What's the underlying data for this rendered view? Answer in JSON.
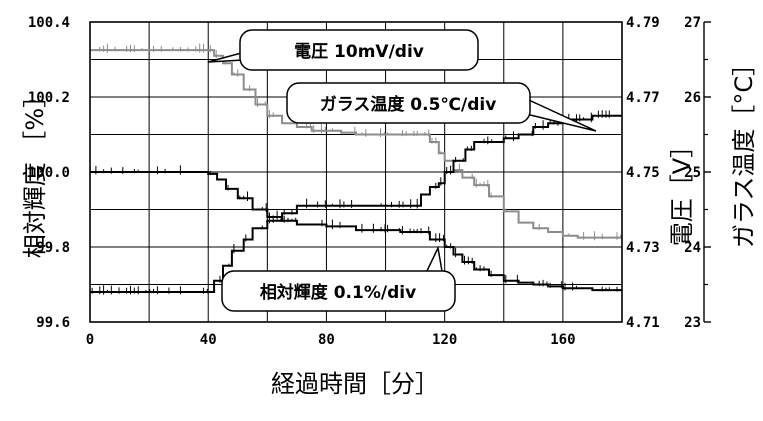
{
  "chart_data": {
    "type": "line",
    "xlabel": "経過時間［分］",
    "xlim": [
      0,
      180
    ],
    "x_ticks": [
      "0",
      "40",
      "80",
      "120",
      "160"
    ],
    "grid": true,
    "axes": {
      "luminance": {
        "label": "相対輝度 ［%］",
        "ylim": [
          99.6,
          100.4
        ],
        "ticks": [
          "99.6",
          "99.8",
          "100.0",
          "100.2",
          "100.4"
        ]
      },
      "voltage": {
        "label": "電圧［V］",
        "ylim": [
          4.71,
          4.79
        ],
        "ticks": [
          "4.71",
          "4.73",
          "4.75",
          "4.77",
          "4.79"
        ]
      },
      "temperature": {
        "label": "ガラス温度［°C］",
        "ylim": [
          23,
          27
        ],
        "ticks": [
          "23",
          "24",
          "25",
          "26",
          "27"
        ]
      }
    },
    "series": [
      {
        "name": "電圧 10mV/div",
        "axis": "voltage",
        "color": "#8c8c8c",
        "x": [
          0,
          40,
          42,
          45,
          48,
          52,
          56,
          60,
          65,
          70,
          75,
          80,
          85,
          90,
          95,
          100,
          105,
          110,
          115,
          118,
          120,
          123,
          126,
          130,
          135,
          140,
          145,
          150,
          155,
          160,
          165,
          170,
          175,
          180
        ],
        "y": [
          4.7825,
          4.7825,
          4.781,
          4.779,
          4.776,
          4.772,
          4.768,
          4.765,
          4.763,
          4.762,
          4.761,
          4.761,
          4.7605,
          4.76,
          4.76,
          4.76,
          4.76,
          4.76,
          4.758,
          4.755,
          4.753,
          4.7505,
          4.7485,
          4.7465,
          4.7435,
          4.7395,
          4.7365,
          4.735,
          4.734,
          4.733,
          4.7325,
          4.7325,
          4.7325,
          4.7325
        ]
      },
      {
        "name": "ガラス温度 0.5℃/div",
        "axis": "temperature",
        "color": "#000000",
        "x": [
          0,
          40,
          42,
          45,
          48,
          52,
          55,
          60,
          65,
          70,
          75,
          80,
          90,
          100,
          110,
          112,
          115,
          118,
          120,
          123,
          127,
          130,
          140,
          145,
          150,
          155,
          160,
          165,
          170,
          175,
          180
        ],
        "y": [
          23.4,
          23.4,
          23.55,
          23.75,
          23.95,
          24.1,
          24.25,
          24.35,
          24.45,
          24.55,
          24.55,
          24.55,
          24.55,
          24.55,
          24.55,
          24.7,
          24.8,
          24.85,
          25.0,
          25.15,
          25.3,
          25.4,
          25.45,
          25.5,
          25.6,
          25.65,
          25.7,
          25.7,
          25.75,
          25.75,
          25.75
        ]
      },
      {
        "name": "相対輝度 0.1%/div",
        "axis": "luminance",
        "color": "#000000",
        "x": [
          0,
          40,
          43,
          46,
          50,
          55,
          60,
          65,
          70,
          80,
          90,
          100,
          105,
          110,
          115,
          120,
          123,
          126,
          130,
          135,
          140,
          145,
          150,
          155,
          160,
          165,
          170,
          175,
          180
        ],
        "y": [
          100.0,
          99.995,
          99.98,
          99.955,
          99.93,
          99.9,
          99.88,
          99.87,
          99.86,
          99.855,
          99.845,
          99.845,
          99.84,
          99.84,
          99.82,
          99.8,
          99.78,
          99.76,
          99.74,
          99.725,
          99.71,
          99.705,
          99.7,
          99.695,
          99.69,
          99.69,
          99.685,
          99.685,
          99.685
        ]
      }
    ],
    "annotations": [
      {
        "text": "電圧 10mV/div"
      },
      {
        "text": "ガラス温度 0.5℃/div"
      },
      {
        "text": "相対輝度 0.1%/div"
      }
    ]
  }
}
